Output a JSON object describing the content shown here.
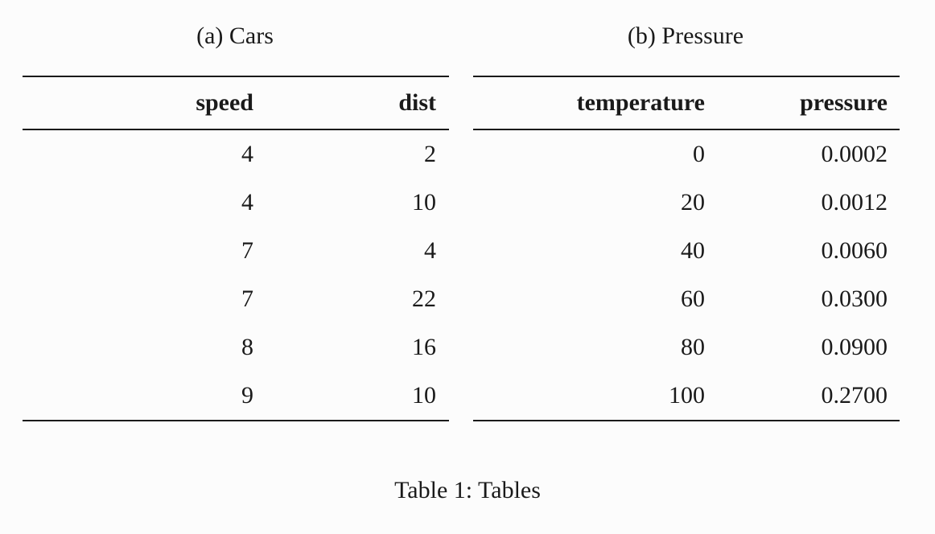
{
  "cars": {
    "subcaption": "(a) Cars",
    "headers": [
      "speed",
      "dist"
    ],
    "rows": [
      [
        "4",
        "2"
      ],
      [
        "4",
        "10"
      ],
      [
        "7",
        "4"
      ],
      [
        "7",
        "22"
      ],
      [
        "8",
        "16"
      ],
      [
        "9",
        "10"
      ]
    ]
  },
  "pressure": {
    "subcaption": "(b) Pressure",
    "headers": [
      "temperature",
      "pressure"
    ],
    "rows": [
      [
        "0",
        "0.0002"
      ],
      [
        "20",
        "0.0012"
      ],
      [
        "40",
        "0.0060"
      ],
      [
        "60",
        "0.0300"
      ],
      [
        "80",
        "0.0900"
      ],
      [
        "100",
        "0.2700"
      ]
    ]
  },
  "caption": "Table 1: Tables"
}
